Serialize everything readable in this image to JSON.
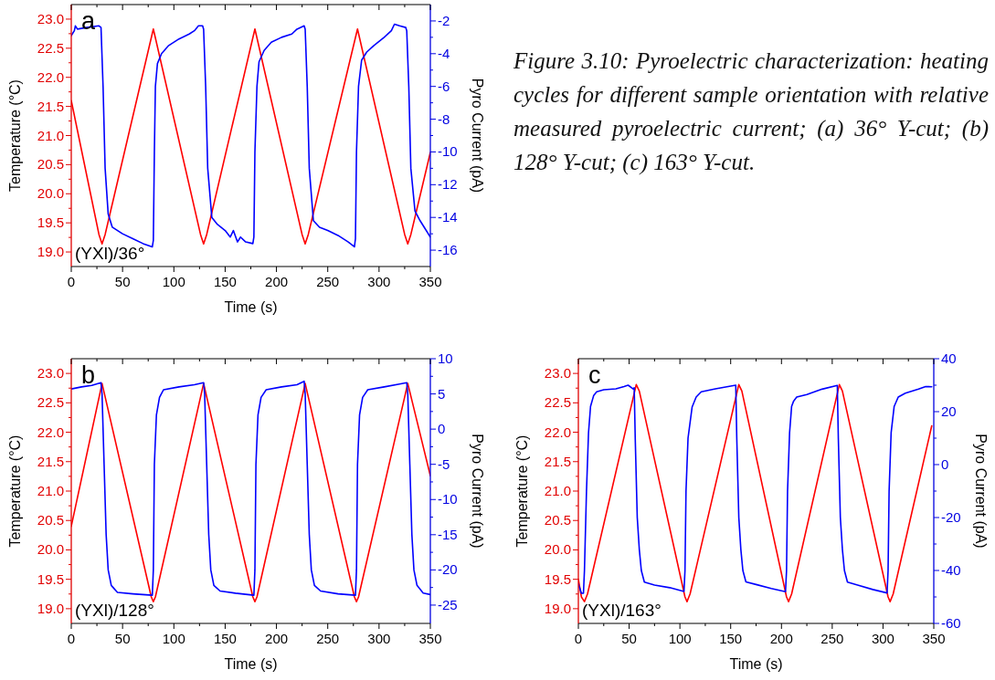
{
  "chart_data": [
    {
      "type": "line",
      "title": "a",
      "xlabel": "Time (s)",
      "ylabel": "Temperature (°C)",
      "y2label": "Pyro Current (pA)",
      "annotations": [
        "(YXl)/36°"
      ],
      "xlim": [
        0,
        350
      ],
      "xticks": [
        0,
        {
          "value": 25,
          "label": null
        },
        50,
        {
          "value": 75,
          "label": null
        },
        100,
        {
          "value": 125,
          "label": null
        },
        150,
        {
          "value": 175,
          "label": null
        },
        200,
        {
          "value": 225,
          "label": null
        },
        250,
        {
          "value": 275,
          "label": null
        },
        300,
        {
          "value": 325,
          "label": null
        },
        350
      ],
      "ylim": [
        18.75,
        23.25
      ],
      "yticks": [
        {
          "value": 19,
          "label": "19.0"
        },
        {
          "value": 19.25,
          "label": null
        },
        19.5,
        {
          "value": 19.75,
          "label": null
        },
        {
          "value": 20,
          "label": "20.0"
        },
        {
          "value": 20.25,
          "label": null
        },
        20.5,
        {
          "value": 20.75,
          "label": null
        },
        {
          "value": 21,
          "label": "21.0"
        },
        {
          "value": 21.25,
          "label": null
        },
        21.5,
        {
          "value": 21.75,
          "label": null
        },
        {
          "value": 22,
          "label": "22.0"
        },
        {
          "value": 22.25,
          "label": null
        },
        22.5,
        {
          "value": 22.75,
          "label": null
        },
        {
          "value": 23,
          "label": "23.0"
        }
      ],
      "y2lim": [
        -17,
        -1
      ],
      "y2ticks": [
        -16,
        {
          "value": -15,
          "label": null
        },
        -14,
        {
          "value": -13,
          "label": null
        },
        -12,
        {
          "value": -11,
          "label": null
        },
        -10,
        {
          "value": -9,
          "label": null
        },
        -8,
        {
          "value": -7,
          "label": null
        },
        -6,
        {
          "value": -5,
          "label": null
        },
        -4,
        {
          "value": -3,
          "label": null
        },
        -2
      ],
      "series": [
        {
          "color": "#ff0000",
          "axis": "y",
          "x": [
            0,
            27,
            30,
            33,
            80,
            126,
            129,
            132,
            179,
            225,
            228,
            231,
            279,
            325,
            328,
            331,
            350
          ],
          "values": [
            21.6,
            19.3,
            19.14,
            19.3,
            22.83,
            19.3,
            19.14,
            19.3,
            22.83,
            19.3,
            19.14,
            19.3,
            22.83,
            19.3,
            19.14,
            19.3,
            20.71
          ]
        },
        {
          "color": "#0000ff",
          "axis": "y2",
          "x": [
            0,
            3,
            4,
            6,
            15,
            27,
            29,
            31,
            33,
            36,
            40,
            50,
            60,
            70,
            79,
            80,
            81,
            82,
            84,
            88,
            95,
            105,
            115,
            120,
            124,
            128,
            129,
            131,
            133,
            137,
            142,
            150,
            155,
            158,
            162,
            165,
            170,
            177,
            178,
            179,
            181,
            183,
            188,
            195,
            205,
            215,
            220,
            227,
            228,
            230,
            232,
            236,
            242,
            250,
            260,
            270,
            276,
            277,
            278,
            280,
            283,
            288,
            295,
            305,
            312,
            315,
            320,
            326,
            327,
            329,
            331,
            335,
            340,
            345,
            350
          ],
          "values": [
            -2.9,
            -2.6,
            -2.3,
            -2.5,
            -2.4,
            -2.3,
            -2.4,
            -6,
            -11,
            -13.8,
            -14.6,
            -15.0,
            -15.3,
            -15.6,
            -15.8,
            -15.4,
            -10,
            -6,
            -4.6,
            -4.0,
            -3.5,
            -3.1,
            -2.8,
            -2.6,
            -2.3,
            -2.3,
            -2.5,
            -6,
            -11,
            -14.0,
            -14.4,
            -14.8,
            -15.2,
            -14.8,
            -15.5,
            -15.2,
            -15.5,
            -15.6,
            -15.2,
            -10,
            -6,
            -4.5,
            -3.8,
            -3.3,
            -3.0,
            -2.8,
            -2.5,
            -2.3,
            -2.5,
            -6,
            -11,
            -14.2,
            -14.6,
            -14.8,
            -15.1,
            -15.5,
            -15.8,
            -15.3,
            -10,
            -6,
            -4.4,
            -3.9,
            -3.5,
            -3.0,
            -2.6,
            -2.2,
            -2.3,
            -2.4,
            -2.6,
            -6,
            -11,
            -13.6,
            -14.2,
            -14.7,
            -15.2
          ]
        }
      ]
    },
    {
      "type": "other",
      "annotations": [
        "Figure 3.10: Pyroelectric characterization: heating cycles for different sample orientation with relative measured pyroelectric current; (a) 36° Y-cut; (b) 128° Y-cut; (c) 163° Y-cut."
      ]
    },
    {
      "type": "line",
      "title": "b",
      "xlabel": "Time (s)",
      "ylabel": "Temperature (°C)",
      "y2label": "Pyro Current (pA)",
      "annotations": [
        "(YXl)/128°"
      ],
      "xlim": [
        0,
        350
      ],
      "xticks": [
        0,
        {
          "value": 25,
          "label": null
        },
        50,
        {
          "value": 75,
          "label": null
        },
        100,
        {
          "value": 125,
          "label": null
        },
        150,
        {
          "value": 175,
          "label": null
        },
        200,
        {
          "value": 225,
          "label": null
        },
        250,
        {
          "value": 275,
          "label": null
        },
        300,
        {
          "value": 325,
          "label": null
        },
        350
      ],
      "ylim": [
        18.75,
        23.25
      ],
      "yticks": [
        {
          "value": 19,
          "label": "19.0"
        },
        {
          "value": 19.25,
          "label": null
        },
        19.5,
        {
          "value": 19.75,
          "label": null
        },
        {
          "value": 20,
          "label": "20.0"
        },
        {
          "value": 20.25,
          "label": null
        },
        20.5,
        {
          "value": 20.75,
          "label": null
        },
        {
          "value": 21,
          "label": "21.0"
        },
        {
          "value": 21.25,
          "label": null
        },
        21.5,
        {
          "value": 21.75,
          "label": null
        },
        {
          "value": 22,
          "label": "22.0"
        },
        {
          "value": 22.25,
          "label": null
        },
        22.5,
        {
          "value": 22.75,
          "label": null
        },
        {
          "value": 23,
          "label": "23.0"
        }
      ],
      "y2lim": [
        -27.6,
        10
      ],
      "y2ticks": [
        -25,
        {
          "value": -22.5,
          "label": null
        },
        -20,
        {
          "value": -17.5,
          "label": null
        },
        -15,
        {
          "value": -12.5,
          "label": null
        },
        -10,
        {
          "value": -7.5,
          "label": null
        },
        -5,
        {
          "value": -2.5,
          "label": null
        },
        0,
        {
          "value": 2.5,
          "label": null
        },
        5,
        {
          "value": 7.5,
          "label": null
        },
        10
      ],
      "series": [
        {
          "color": "#ff0000",
          "axis": "y",
          "x": [
            0,
            30,
            78,
            80,
            82,
            129,
            177,
            179,
            181,
            228,
            276,
            278,
            280,
            328,
            350
          ],
          "values": [
            20.4,
            22.83,
            19.2,
            19.12,
            19.2,
            22.83,
            19.2,
            19.12,
            19.2,
            22.83,
            19.2,
            19.12,
            19.2,
            22.83,
            21.26
          ]
        },
        {
          "color": "#0000ff",
          "axis": "y2",
          "x": [
            0,
            10,
            20,
            29,
            30,
            32,
            34,
            36,
            39,
            45,
            60,
            79,
            80,
            81,
            83,
            86,
            90,
            105,
            120,
            129,
            130,
            132,
            134,
            136,
            139,
            145,
            160,
            178,
            179,
            180,
            182,
            185,
            190,
            205,
            220,
            227,
            228,
            230,
            232,
            234,
            237,
            243,
            260,
            277,
            278,
            279,
            281,
            284,
            289,
            305,
            320,
            327,
            328,
            330,
            332,
            334,
            337,
            343,
            350
          ],
          "values": [
            5.7,
            6.0,
            6.2,
            6.6,
            5,
            -5,
            -15,
            -20,
            -22.2,
            -23.2,
            -23.4,
            -23.6,
            -20,
            -5,
            2,
            4.5,
            5.6,
            6.0,
            6.3,
            6.6,
            5,
            -5,
            -15,
            -20,
            -22.2,
            -23.0,
            -23.3,
            -23.6,
            -20,
            -5,
            2,
            4.5,
            5.6,
            6.0,
            6.3,
            6.8,
            5,
            -5,
            -15,
            -20,
            -22.2,
            -23.0,
            -23.4,
            -23.6,
            -20,
            -5,
            2,
            4.5,
            5.6,
            6.0,
            6.4,
            6.6,
            5,
            -5,
            -15,
            -20,
            -22.2,
            -23.3,
            -23.5
          ]
        }
      ]
    },
    {
      "type": "line",
      "title": "c",
      "xlabel": "Time (s)",
      "ylabel": "Temperature (°C)",
      "y2label": "Pyro Current (pA)",
      "annotations": [
        "(YXl)/163°"
      ],
      "xlim": [
        0,
        350
      ],
      "xticks": [
        0,
        {
          "value": 25,
          "label": null
        },
        50,
        {
          "value": 75,
          "label": null
        },
        100,
        {
          "value": 125,
          "label": null
        },
        150,
        {
          "value": 175,
          "label": null
        },
        200,
        {
          "value": 225,
          "label": null
        },
        250,
        {
          "value": 275,
          "label": null
        },
        300,
        {
          "value": 325,
          "label": null
        },
        350
      ],
      "ylim": [
        18.75,
        23.25
      ],
      "yticks": [
        {
          "value": 19,
          "label": "19.0"
        },
        {
          "value": 19.25,
          "label": null
        },
        19.5,
        {
          "value": 19.75,
          "label": null
        },
        {
          "value": 20,
          "label": "20.0"
        },
        {
          "value": 20.25,
          "label": null
        },
        20.5,
        {
          "value": 20.75,
          "label": null
        },
        {
          "value": 21,
          "label": "21.0"
        },
        {
          "value": 21.25,
          "label": null
        },
        21.5,
        {
          "value": 21.75,
          "label": null
        },
        {
          "value": 22,
          "label": "22.0"
        },
        {
          "value": 22.25,
          "label": null
        },
        22.5,
        {
          "value": 22.75,
          "label": null
        },
        {
          "value": 23,
          "label": "23.0"
        }
      ],
      "y2lim": [
        -60,
        40
      ],
      "y2ticks": [
        -60,
        {
          "value": -50,
          "label": null
        },
        -40,
        {
          "value": -30,
          "label": null
        },
        -20,
        {
          "value": -10,
          "label": null
        },
        0,
        {
          "value": 10,
          "label": null
        },
        20,
        {
          "value": 30,
          "label": null
        },
        40
      ],
      "series": [
        {
          "color": "#ff0000",
          "axis": "y",
          "x": [
            0,
            3,
            6,
            9,
            57,
            60,
            105,
            107,
            110,
            158,
            161,
            205,
            207,
            210,
            257,
            260,
            305,
            307,
            310,
            348
          ],
          "values": [
            19.5,
            19.2,
            19.12,
            19.25,
            22.81,
            22.7,
            19.2,
            19.12,
            19.25,
            22.81,
            22.7,
            19.2,
            19.12,
            19.25,
            22.81,
            22.7,
            19.2,
            19.12,
            19.25,
            22.11
          ]
        },
        {
          "color": "#0000ff",
          "axis": "y2",
          "x": [
            0,
            3,
            5,
            6,
            8,
            10,
            12,
            15,
            18,
            25,
            37,
            45,
            49,
            54,
            55,
            56,
            58,
            60,
            62,
            65,
            75,
            90,
            104,
            105,
            106,
            108,
            112,
            116,
            121,
            135,
            145,
            155,
            156,
            158,
            160,
            162,
            165,
            175,
            190,
            204,
            205,
            206,
            208,
            210,
            212,
            215,
            225,
            240,
            255,
            256,
            258,
            260,
            262,
            265,
            275,
            290,
            304,
            305,
            306,
            308,
            311,
            315,
            322,
            335,
            342,
            348
          ],
          "values": [
            -45,
            -48.6,
            -48.6,
            -40,
            -10,
            12,
            22,
            26,
            27.5,
            28.3,
            28.6,
            29.5,
            30,
            28.6,
            29,
            10,
            -20,
            -32,
            -40,
            -44.4,
            -45.5,
            -46.5,
            -47.9,
            -40,
            -10,
            10,
            21.7,
            25.5,
            27.5,
            28.6,
            29.3,
            30,
            10,
            -20,
            -32,
            -40,
            -44.3,
            -45.3,
            -46.8,
            -48,
            -40,
            -10,
            12,
            22,
            24,
            25.5,
            26.5,
            28.5,
            29.9,
            10,
            -20,
            -32,
            -40,
            -44.4,
            -45.5,
            -47.2,
            -48.5,
            -40,
            -10,
            12,
            22,
            25.5,
            27,
            28.5,
            29.5,
            29.4
          ]
        }
      ]
    }
  ]
}
